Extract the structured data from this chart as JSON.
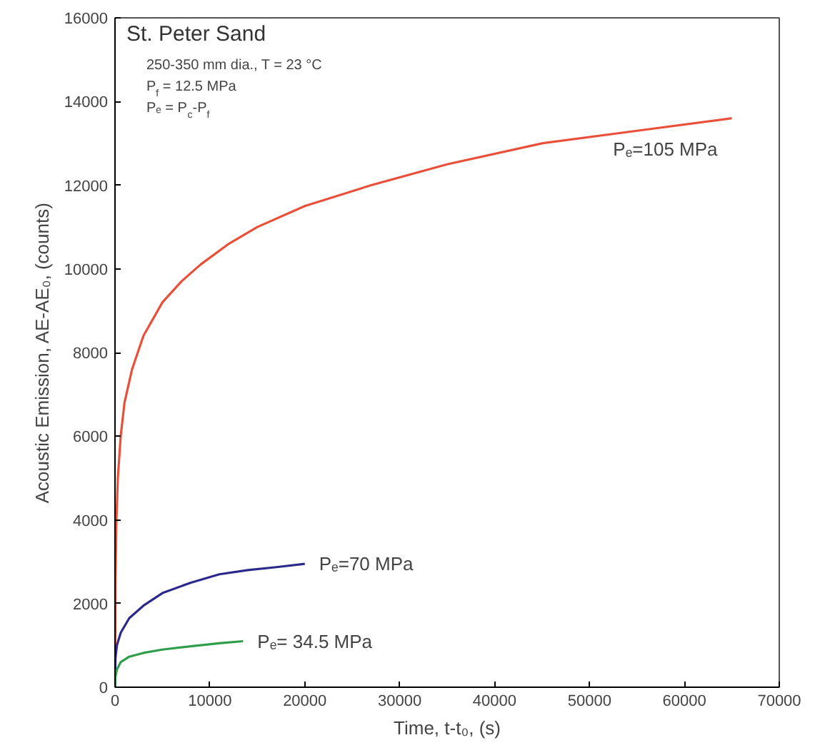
{
  "chart_data": {
    "type": "line",
    "title": "St. Peter Sand",
    "xlabel": "Time, t-t₀, (s)",
    "ylabel": "Acoustic Emission, AE-AE₀, (counts)",
    "xlim": [
      0,
      70000
    ],
    "xticks": [
      0,
      10000,
      20000,
      30000,
      40000,
      50000,
      60000,
      70000
    ],
    "ylim": [
      0,
      16000
    ],
    "yticks": [
      0,
      2000,
      4000,
      6000,
      8000,
      10000,
      12000,
      14000,
      16000
    ],
    "grid": false,
    "series": [
      {
        "name": "Pₑ=105 MPa",
        "color": "#e8503a",
        "x": [
          0,
          50,
          150,
          300,
          600,
          1000,
          1800,
          3000,
          5000,
          7000,
          9000,
          12000,
          15000,
          20000,
          27000,
          35000,
          45000,
          55000,
          65000
        ],
        "values": [
          0,
          2500,
          4000,
          5000,
          6000,
          6800,
          7600,
          8400,
          9200,
          9700,
          10100,
          10600,
          11000,
          11500,
          12000,
          12500,
          13000,
          13300,
          13600
        ]
      },
      {
        "name": "Pₑ=70 MPa",
        "color": "#2b2a8c",
        "x": [
          0,
          50,
          200,
          600,
          1500,
          3000,
          5000,
          8000,
          11000,
          14000,
          17000,
          20000
        ],
        "values": [
          0,
          700,
          1000,
          1300,
          1650,
          1950,
          2250,
          2500,
          2700,
          2800,
          2870,
          2950
        ]
      },
      {
        "name": "Pₑ= 34.5 MPa",
        "color": "#2e9e4a",
        "x": [
          0,
          50,
          200,
          600,
          1500,
          3000,
          5000,
          8000,
          11000,
          13500
        ],
        "values": [
          0,
          250,
          420,
          600,
          730,
          820,
          900,
          980,
          1050,
          1100
        ]
      }
    ],
    "annotations": [
      "250-350 mm dia., T = 23 °C",
      "P$_{f}$ = 12.5 MPa",
      "Pₑ = P$_{c}$-P$_{f}$"
    ]
  }
}
